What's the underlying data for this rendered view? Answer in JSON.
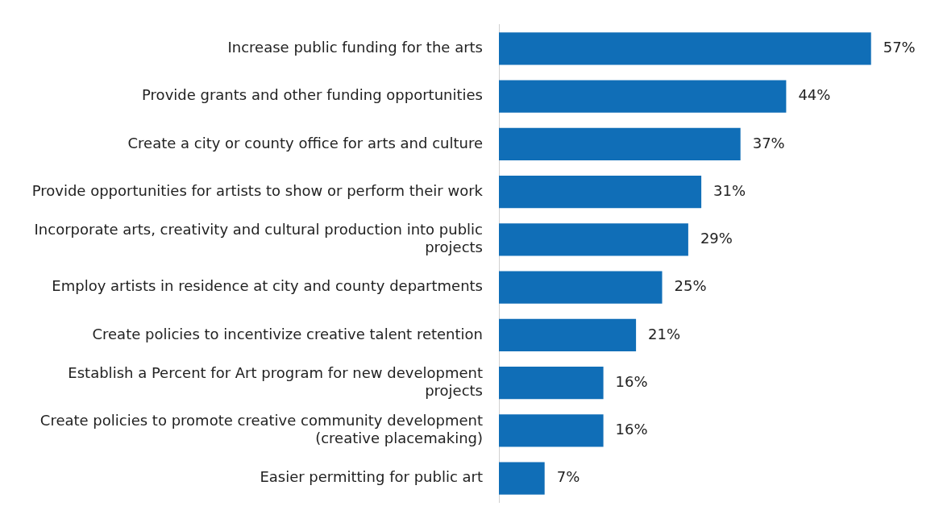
{
  "chart_data": {
    "type": "bar",
    "orientation": "horizontal",
    "categories": [
      "Increase public funding for the arts",
      "Provide grants and other funding opportunities",
      "Create a city or county office for arts and culture",
      "Provide opportunities for artists to show or perform their work",
      "Incorporate arts, creativity and cultural production into public projects",
      "Employ artists in residence at city and county departments",
      "Create policies to incentivize creative talent retention",
      "Establish a Percent for Art program for new development projects",
      "Create policies to promote creative community development (creative placemaking)",
      "Easier permitting for public art"
    ],
    "values": [
      57,
      44,
      37,
      31,
      29,
      25,
      21,
      16,
      16,
      7
    ],
    "value_labels": [
      "57%",
      "44%",
      "37%",
      "31%",
      "29%",
      "25%",
      "21%",
      "16%",
      "16%",
      "7%"
    ],
    "color": "#106eb7"
  }
}
